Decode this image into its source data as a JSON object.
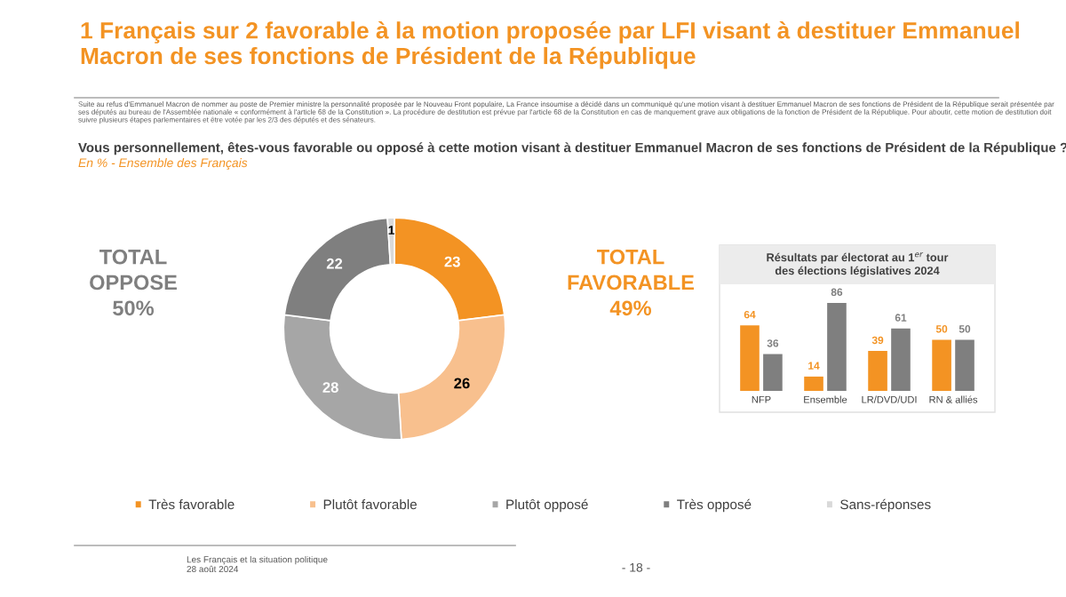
{
  "chart_data": [
    {
      "type": "donut",
      "title": "1 Français sur 2 favorable à la motion proposée par LFI visant à destituer Emmanuel Macron de ses fonctions de Président de la République",
      "subtitle": "Vous personnellement, êtes-vous favorable ou opposé à cette motion visant à destituer Emmanuel Macron de ses fonctions de Président de la République ?",
      "annotations": [
        "Suite au refus d'Emmanuel Macron de nommer au poste de Premier ministre la personnalité proposée par le Nouveau Front populaire, La France insoumise a décidé dans un communiqué qu'une motion visant à destituer Emmanuel Macron de ses fonctions de Président de la République serait présentée par ses députés au bureau de l'Assemblée nationale « conformément à l'article 68 de la Constitution ». La procédure de destitution est prévue par l'article 68 de la Constitution en cas de manquement grave aux obligations de la fonction de Président de la République. Pour aboutir, cette motion de destitution doit suivre plusieurs étapes parlementaires et être votée par les 2/3 des députés et des sénateurs.",
        "En % - Ensemble des Français",
        "TOTAL\nOPPOSE\n50%",
        "TOTAL\nFAVORABLE\n49%",
        "Les Français et la situation politique\n28 août 2024",
        "- 18 -"
      ],
      "categories": [
        "Très favorable",
        "Plutôt favorable",
        "Plutôt opposé",
        "Très opposé",
        "Sans-réponses"
      ],
      "values": [
        23,
        26,
        28,
        22,
        1
      ],
      "colors": [
        "#f39323",
        "#f8c08e",
        "#a6a6a6",
        "#7f7f7f",
        "#d9d9d9"
      ],
      "data_labels": true,
      "legend": "bottom"
    },
    {
      "type": "bar",
      "title": "Résultats par électorat au 1$^{er}$ tour\ndes élections législatives 2024",
      "categories": [
        "NFP",
        "Ensemble",
        "LR/DVD/UDI",
        "RN & alliés"
      ],
      "series": [
        {
          "color": "#f39323",
          "values": [
            64,
            14,
            39,
            50
          ]
        },
        {
          "color": "#7f7f7f",
          "values": [
            36,
            86,
            61,
            50
          ]
        }
      ],
      "data_labels": true
    }
  ]
}
